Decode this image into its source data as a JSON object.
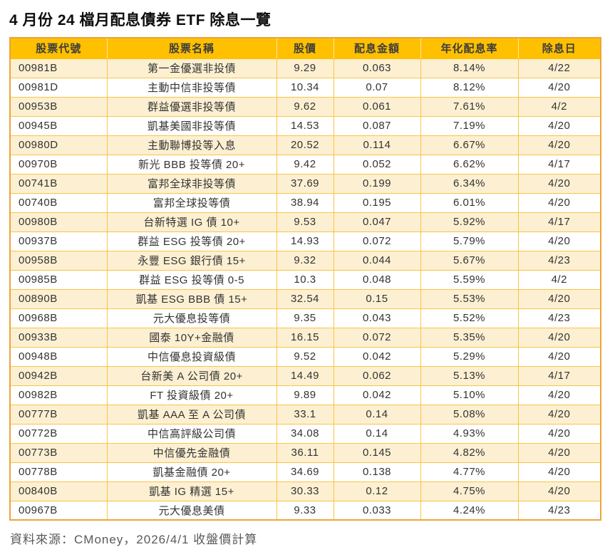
{
  "chart_data": {
    "type": "table",
    "title": "4 月份 24 檔月配息債券 ETF 除息一覽",
    "columns": [
      "股票代號",
      "股票名稱",
      "股價",
      "配息金額",
      "年化配息率",
      "除息日"
    ],
    "rows": [
      [
        "00981B",
        "第一金優選非投債",
        "9.29",
        "0.063",
        "8.14%",
        "4/22"
      ],
      [
        "00981D",
        "主動中信非投等債",
        "10.34",
        "0.07",
        "8.12%",
        "4/20"
      ],
      [
        "00953B",
        "群益優選非投等債",
        "9.62",
        "0.061",
        "7.61%",
        "4/2"
      ],
      [
        "00945B",
        "凱基美國非投等債",
        "14.53",
        "0.087",
        "7.19%",
        "4/20"
      ],
      [
        "00980D",
        "主動聯博投等入息",
        "20.52",
        "0.114",
        "6.67%",
        "4/20"
      ],
      [
        "00970B",
        "新光 BBB 投等債 20+",
        "9.42",
        "0.052",
        "6.62%",
        "4/17"
      ],
      [
        "00741B",
        "富邦全球非投等債",
        "37.69",
        "0.199",
        "6.34%",
        "4/20"
      ],
      [
        "00740B",
        "富邦全球投等債",
        "38.94",
        "0.195",
        "6.01%",
        "4/20"
      ],
      [
        "00980B",
        "台新特選 IG 債 10+",
        "9.53",
        "0.047",
        "5.92%",
        "4/17"
      ],
      [
        "00937B",
        "群益 ESG 投等債 20+",
        "14.93",
        "0.072",
        "5.79%",
        "4/20"
      ],
      [
        "00958B",
        "永豐 ESG 銀行債 15+",
        "9.32",
        "0.044",
        "5.67%",
        "4/23"
      ],
      [
        "00985B",
        "群益 ESG 投等債 0-5",
        "10.3",
        "0.048",
        "5.59%",
        "4/2"
      ],
      [
        "00890B",
        "凱基 ESG BBB  債  15+",
        "32.54",
        "0.15",
        "5.53%",
        "4/20"
      ],
      [
        "00968B",
        "元大優息投等債",
        "9.35",
        "0.043",
        "5.52%",
        "4/23"
      ],
      [
        "00933B",
        "國泰 10Y+金融債",
        "16.15",
        "0.072",
        "5.35%",
        "4/20"
      ],
      [
        "00948B",
        "中信優息投資級債",
        "9.52",
        "0.042",
        "5.29%",
        "4/20"
      ],
      [
        "00942B",
        "台新美 A 公司債 20+",
        "14.49",
        "0.062",
        "5.13%",
        "4/17"
      ],
      [
        "00982B",
        "FT 投資級債 20+",
        "9.89",
        "0.042",
        "5.10%",
        "4/20"
      ],
      [
        "00777B",
        "凱基 AAA 至 A 公司債",
        "33.1",
        "0.14",
        "5.08%",
        "4/20"
      ],
      [
        "00772B",
        "中信高評級公司債",
        "34.08",
        "0.14",
        "4.93%",
        "4/20"
      ],
      [
        "00773B",
        "中信優先金融債",
        "36.11",
        "0.145",
        "4.82%",
        "4/20"
      ],
      [
        "00778B",
        "凱基金融債 20+",
        "34.69",
        "0.138",
        "4.77%",
        "4/20"
      ],
      [
        "00840B",
        "凱基 IG 精選 15+",
        "30.33",
        "0.12",
        "4.75%",
        "4/20"
      ],
      [
        "00967B",
        "元大優息美債",
        "9.33",
        "0.033",
        "4.24%",
        "4/23"
      ]
    ],
    "source_note": "資料來源：CMoney，2026/4/1 收盤價計算",
    "layout_hints": {
      "header_bg": "#FFC000",
      "alt_row_bg": "#FDF0D2",
      "row_bg": "#FFFFFF",
      "grid_color": "#F8C445",
      "outer_border_color": "#ECA43C",
      "header_text_color": "#3D3D3D",
      "body_text_color": "#333333",
      "note_text_color": "#595959",
      "grid": "on"
    }
  }
}
